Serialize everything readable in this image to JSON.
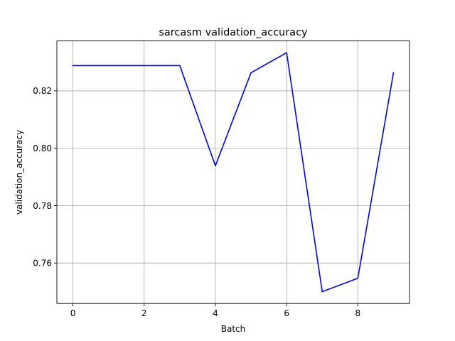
{
  "chart_data": {
    "type": "line",
    "title": "sarcasm validation_accuracy",
    "xlabel": "Batch",
    "ylabel": "validation_accuracy",
    "x": [
      0,
      1,
      2,
      3,
      4,
      5,
      6,
      7,
      8,
      9
    ],
    "series": [
      {
        "values": [
          0.8288,
          0.8288,
          0.8288,
          0.8288,
          0.7939,
          0.8263,
          0.8333,
          0.75,
          0.7547,
          0.8263
        ],
        "color": "#0000ff"
      }
    ],
    "xlim": [
      -0.45,
      9.45
    ],
    "ylim": [
      0.7459,
      0.8374
    ],
    "xticks": [
      0,
      2,
      4,
      6,
      8
    ],
    "xtick_labels": [
      "0",
      "2",
      "4",
      "6",
      "8"
    ],
    "yticks": [
      0.76,
      0.78,
      0.8,
      0.82
    ],
    "ytick_labels": [
      "0.76",
      "0.78",
      "0.80",
      "0.82"
    ],
    "grid": true,
    "legend": "none"
  }
}
